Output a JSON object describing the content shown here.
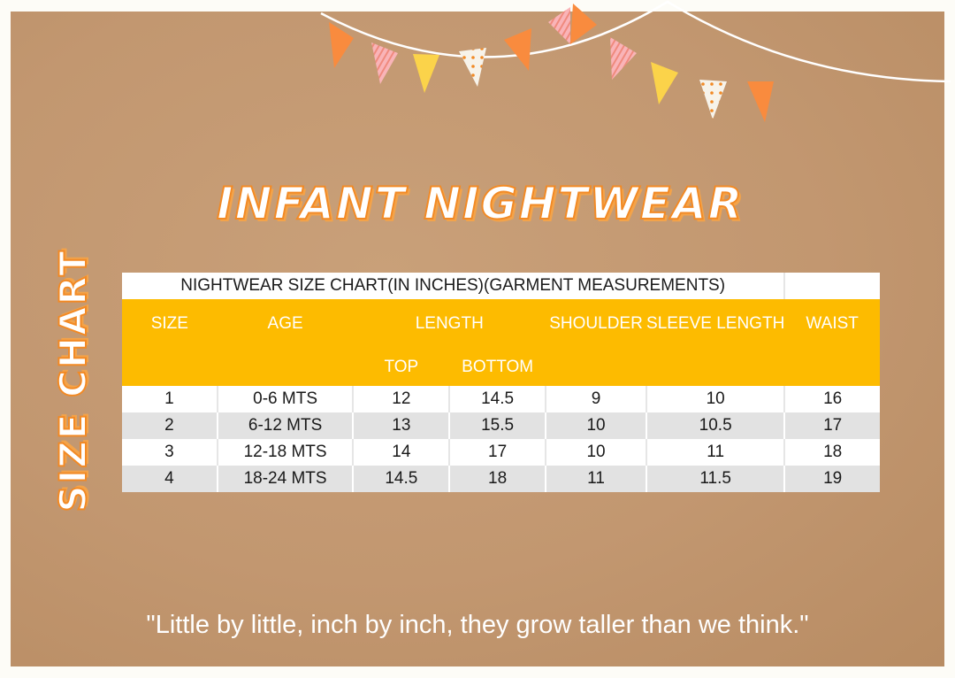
{
  "title": "INFANT NIGHTWEAR",
  "side_title": "SIZE CHART",
  "quote": "\"Little by little, inch by inch, they grow taller than we think.\"",
  "colors": {
    "header": "#fdbb00",
    "accent": "#f28a25",
    "kraft": "#c29770"
  },
  "table": {
    "caption": "NIGHTWEAR SIZE CHART(IN INCHES)(GARMENT MEASUREMENTS)",
    "headers": {
      "size": "SIZE",
      "age": "AGE",
      "length": "LENGTH",
      "top": "TOP",
      "bottom": "BOTTOM",
      "shoulder": "SHOULDER",
      "sleeve": "SLEEVE LENGTH",
      "waist": "WAIST"
    },
    "rows": [
      [
        "1",
        "0-6 MTS",
        "12",
        "14.5",
        "9",
        "10",
        "16"
      ],
      [
        "2",
        "6-12 MTS",
        "13",
        "15.5",
        "10",
        "10.5",
        "17"
      ],
      [
        "3",
        "12-18 MTS",
        "14",
        "17",
        "10",
        "11",
        "18"
      ],
      [
        "4",
        "18-24 MTS",
        "14.5",
        "18",
        "11",
        "11.5",
        "19"
      ]
    ]
  }
}
